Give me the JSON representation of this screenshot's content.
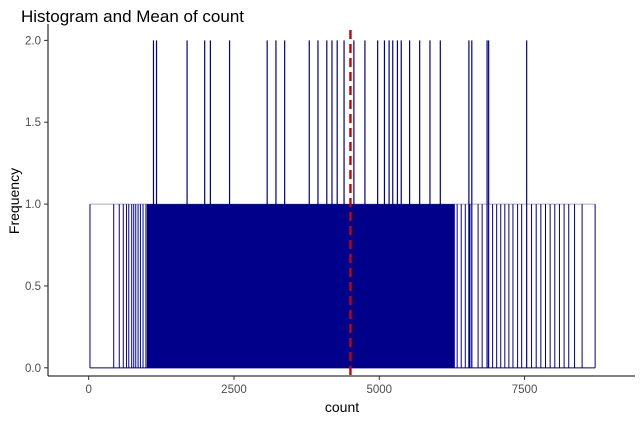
{
  "chart_data": {
    "type": "histogram",
    "title": "Histogram and Mean of  count",
    "xlabel": "count",
    "ylabel": "Frequency",
    "xlim": [
      -700,
      9400
    ],
    "ylim": [
      -0.05,
      2.1
    ],
    "x_ticks": [
      0,
      2500,
      5000,
      7500
    ],
    "x_tick_labels": [
      "0",
      "2500",
      "5000",
      "7500"
    ],
    "y_ticks": [
      0.0,
      0.5,
      1.0,
      1.5,
      2.0
    ],
    "y_tick_labels": [
      "0.0",
      "0.5",
      "1.0",
      "1.5",
      "2.0"
    ],
    "grid": false,
    "legend": "none",
    "bar_color": "#00008B",
    "mean_line_color": "#CC0000",
    "mean_value": 4504,
    "data_range": [
      22,
      8714
    ],
    "dense_region_approx": [
      1000,
      6300
    ],
    "values_frequency_2": [
      1115,
      1167,
      1693,
      1996,
      2094,
      2424,
      3071,
      3222,
      3372,
      3795,
      3945,
      4097,
      4186,
      4276,
      4394,
      4563,
      4753,
      4972,
      5089,
      5169,
      5232,
      5312,
      5378,
      5522,
      5695,
      5872,
      6050,
      6542,
      6592,
      6855,
      6882,
      7536
    ],
    "values_frequency_1_sparse": [
      22,
      431,
      526,
      595,
      650,
      690,
      740,
      775,
      810,
      850,
      890,
      935,
      985,
      1238,
      1320,
      1400,
      1482,
      6340,
      6410,
      6480,
      6560,
      6700,
      6770,
      6950,
      7020,
      7090,
      7160,
      7230,
      7300,
      7380,
      7450,
      7620,
      7700,
      7780,
      7860,
      7940,
      8020,
      8100,
      8180,
      8260,
      8360,
      8490,
      8714
    ]
  }
}
